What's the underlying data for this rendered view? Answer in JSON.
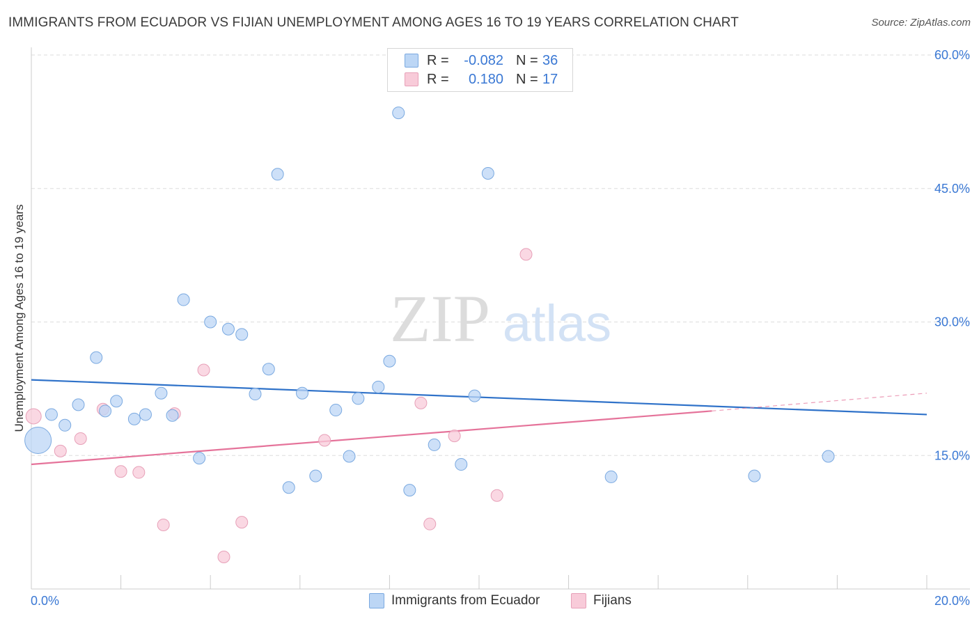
{
  "title": "IMMIGRANTS FROM ECUADOR VS FIJIAN UNEMPLOYMENT AMONG AGES 16 TO 19 YEARS CORRELATION CHART",
  "source": "Source: ZipAtlas.com",
  "watermark": {
    "zip": "ZIP",
    "atlas": "atlas"
  },
  "legend": {
    "rows": [
      {
        "r_label": "R =",
        "r_value": "-0.082",
        "n_label": "N =",
        "n_value": "36",
        "color": "#a9c9f0"
      },
      {
        "r_label": "R =",
        "r_value": "0.180",
        "n_label": "N =",
        "n_value": "17",
        "color": "#f5b9cc"
      }
    ]
  },
  "bottom_legend": [
    "Immigrants from Ecuador",
    "Fijians"
  ],
  "chart_data": {
    "type": "scatter",
    "ylabel": "Unemployment Among Ages 16 to 19 years",
    "xlim": [
      0,
      20
    ],
    "ylim": [
      0,
      60
    ],
    "x_tick_labels": [
      "0.0%",
      "20.0%"
    ],
    "y_tick_labels": [
      {
        "value": 15,
        "label": "15.0%"
      },
      {
        "value": 30,
        "label": "30.0%"
      },
      {
        "value": 45,
        "label": "45.0%"
      },
      {
        "value": 60,
        "label": "60.0%"
      }
    ],
    "colors": {
      "ecuador_fill": "#bcd6f5",
      "ecuador_stroke": "#7aa9e0",
      "ecuador_line": "#2f72c9",
      "fijian_fill": "#f8cbd9",
      "fijian_stroke": "#e7a0b8",
      "fijian_line": "#e5739a",
      "tick_label": "#3a78d4",
      "grid": "#dddddd"
    },
    "series": [
      {
        "name": "Immigrants from Ecuador",
        "points": [
          {
            "x": 0.15,
            "y": 16.7,
            "big": true
          },
          {
            "x": 0.45,
            "y": 19.6
          },
          {
            "x": 0.75,
            "y": 18.4
          },
          {
            "x": 1.05,
            "y": 20.7
          },
          {
            "x": 1.45,
            "y": 26.0
          },
          {
            "x": 1.65,
            "y": 20.0
          },
          {
            "x": 1.9,
            "y": 21.1
          },
          {
            "x": 2.3,
            "y": 19.1
          },
          {
            "x": 2.55,
            "y": 19.6
          },
          {
            "x": 2.9,
            "y": 22.0
          },
          {
            "x": 3.15,
            "y": 19.5
          },
          {
            "x": 3.4,
            "y": 32.5
          },
          {
            "x": 3.75,
            "y": 14.7
          },
          {
            "x": 4.0,
            "y": 30.0
          },
          {
            "x": 4.4,
            "y": 29.2
          },
          {
            "x": 4.7,
            "y": 28.6
          },
          {
            "x": 5.0,
            "y": 21.9
          },
          {
            "x": 5.3,
            "y": 24.7
          },
          {
            "x": 5.5,
            "y": 46.6
          },
          {
            "x": 5.75,
            "y": 11.4
          },
          {
            "x": 6.05,
            "y": 22.0
          },
          {
            "x": 6.35,
            "y": 12.7
          },
          {
            "x": 6.8,
            "y": 20.1
          },
          {
            "x": 7.1,
            "y": 14.9
          },
          {
            "x": 7.3,
            "y": 21.4
          },
          {
            "x": 7.75,
            "y": 22.7
          },
          {
            "x": 8.0,
            "y": 25.6
          },
          {
            "x": 8.2,
            "y": 53.5
          },
          {
            "x": 8.45,
            "y": 11.1
          },
          {
            "x": 9.0,
            "y": 16.2
          },
          {
            "x": 9.6,
            "y": 14.0
          },
          {
            "x": 9.9,
            "y": 21.7
          },
          {
            "x": 10.2,
            "y": 46.7
          },
          {
            "x": 12.95,
            "y": 12.6
          },
          {
            "x": 16.15,
            "y": 12.7
          },
          {
            "x": 17.8,
            "y": 14.9
          }
        ],
        "trend": {
          "x": [
            0,
            20
          ],
          "y": [
            23.5,
            19.6
          ]
        }
      },
      {
        "name": "Fijians",
        "points": [
          {
            "x": 0.05,
            "y": 19.4,
            "mid": true
          },
          {
            "x": 0.65,
            "y": 15.5
          },
          {
            "x": 1.1,
            "y": 16.9
          },
          {
            "x": 1.6,
            "y": 20.2
          },
          {
            "x": 2.0,
            "y": 13.2
          },
          {
            "x": 2.4,
            "y": 13.1
          },
          {
            "x": 2.95,
            "y": 7.2
          },
          {
            "x": 3.2,
            "y": 19.7
          },
          {
            "x": 3.85,
            "y": 24.6
          },
          {
            "x": 4.3,
            "y": 3.6
          },
          {
            "x": 4.7,
            "y": 7.5
          },
          {
            "x": 6.55,
            "y": 16.7
          },
          {
            "x": 8.7,
            "y": 20.9
          },
          {
            "x": 8.9,
            "y": 7.3
          },
          {
            "x": 9.45,
            "y": 17.2
          },
          {
            "x": 10.4,
            "y": 10.5
          },
          {
            "x": 11.05,
            "y": 37.6
          }
        ],
        "trend": {
          "x": [
            0,
            15.2
          ],
          "y": [
            14.0,
            20.0
          ]
        },
        "trend_extension": {
          "x": [
            15.2,
            20
          ],
          "y": [
            20.0,
            22.0
          ]
        }
      }
    ]
  }
}
